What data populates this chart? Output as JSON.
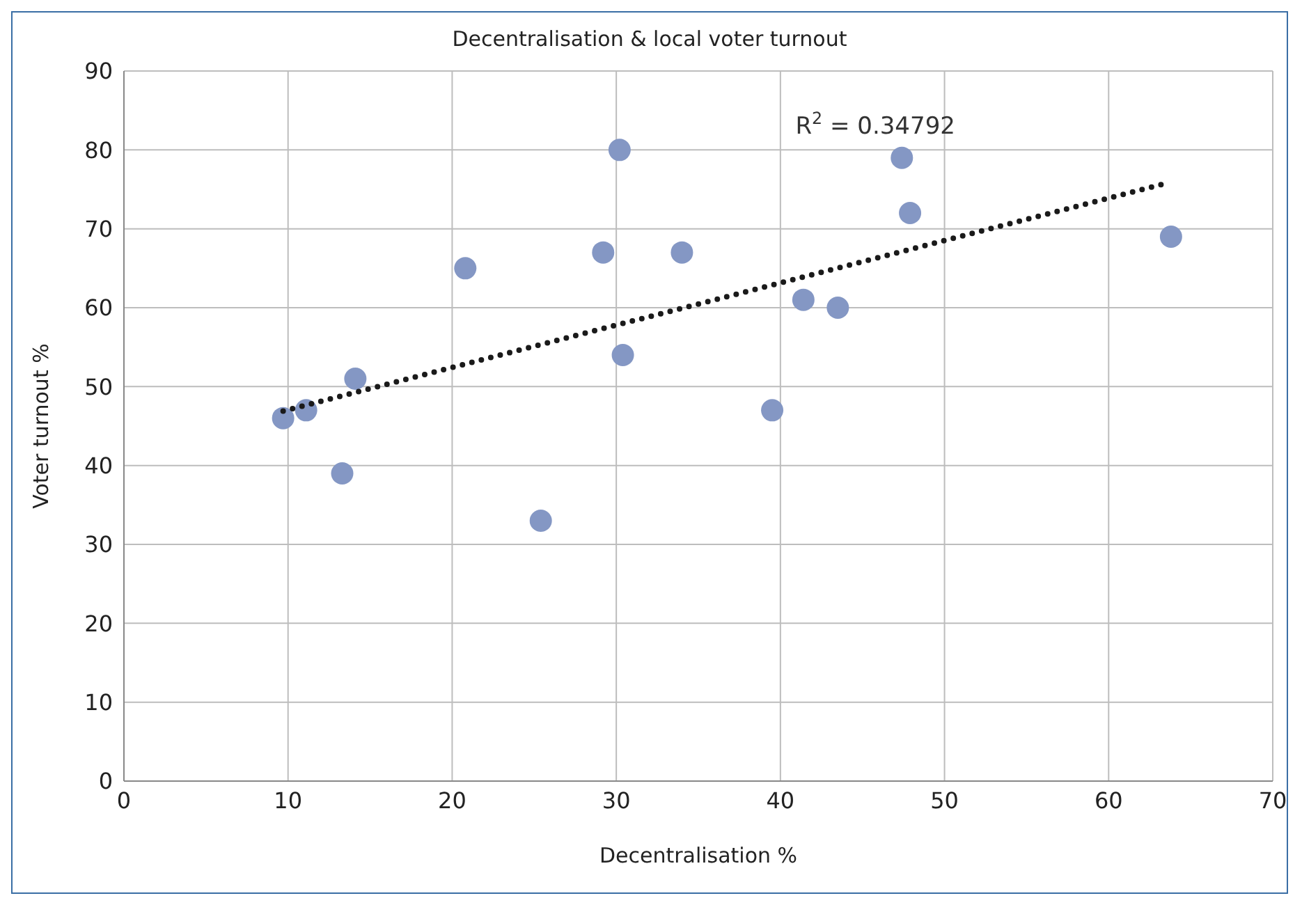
{
  "chart_data": {
    "type": "scatter",
    "title": "Decentralisation & local voter turnout",
    "xlabel": "Decentralisation %",
    "ylabel": "Voter turnout %",
    "xlim": [
      0,
      70
    ],
    "xticks": [
      0,
      10,
      20,
      30,
      40,
      50,
      60,
      70
    ],
    "ylim": [
      0,
      90
    ],
    "yticks": [
      0,
      10,
      20,
      30,
      40,
      50,
      60,
      70,
      80,
      90
    ],
    "grid": true,
    "legend": false,
    "series": [
      {
        "type": "scatter",
        "color": "#8497c4",
        "marker": "circle",
        "x": [
          9.7,
          11.1,
          13.3,
          14.1,
          20.8,
          25.4,
          29.2,
          30.2,
          30.4,
          34.0,
          39.5,
          41.4,
          43.5,
          47.4,
          47.9,
          63.8
        ],
        "values": [
          46,
          47,
          39,
          51,
          65,
          33,
          67,
          80,
          54,
          67,
          47,
          61,
          60,
          79,
          72,
          69
        ]
      },
      {
        "type": "line",
        "color": "#1a1a1a",
        "marker": "none",
        "line_style": "dotted",
        "x": [
          9.7,
          63.4
        ],
        "values": [
          46.9,
          75.7
        ]
      }
    ],
    "annotations": [
      "R$^{2}$ = 0.34792"
    ]
  }
}
